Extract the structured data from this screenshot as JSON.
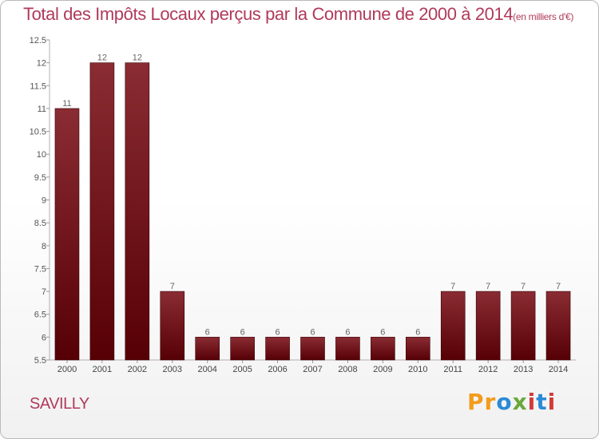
{
  "header": {
    "title": "Total des Impôts Locaux perçus par la Commune de 2000 à 2014",
    "unit": "(en milliers d'€)"
  },
  "footer": {
    "commune": "SAVILLY",
    "logo": "Proxiti"
  },
  "chart_data": {
    "type": "bar",
    "title": "Total des Impôts Locaux perçus par la Commune de 2000 à 2014",
    "subtitle": "(en milliers d'€)",
    "xlabel": "",
    "ylabel": "",
    "categories": [
      "2000",
      "2001",
      "2002",
      "2003",
      "2004",
      "2005",
      "2006",
      "2007",
      "2008",
      "2009",
      "2010",
      "2011",
      "2012",
      "2013",
      "2014"
    ],
    "values": [
      11,
      12,
      12,
      7,
      6,
      6,
      6,
      6,
      6,
      6,
      6,
      7,
      7,
      7,
      7
    ],
    "ylim": [
      5.5,
      12.5
    ],
    "yticks": [
      "5.5",
      "6",
      "6.5",
      "7",
      "7.5",
      "8",
      "8.5",
      "9",
      "9.5",
      "10",
      "10.5",
      "11",
      "11.5",
      "12",
      "12.5"
    ],
    "grid": false,
    "legend": "none",
    "colors": {
      "bar": "#7a1e26",
      "bar_dark": "#560005",
      "title": "#b03a5b"
    }
  }
}
